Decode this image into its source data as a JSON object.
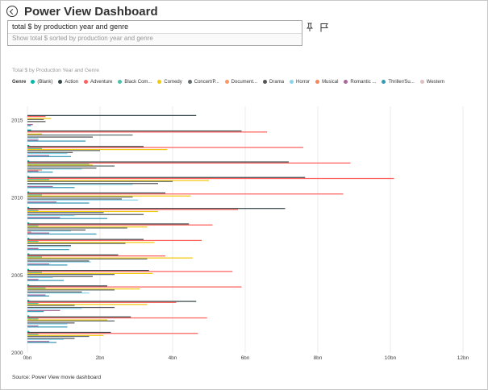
{
  "header": {
    "title": "Power View Dashboard"
  },
  "query": {
    "text": "total $ by production year and genre",
    "suggestion": "Show total $ sorted by production year and genre"
  },
  "legend_title": "Genre",
  "source": "Source: Power View movie dashboard",
  "chart_data": {
    "type": "bar",
    "orientation": "horizontal",
    "title": "Total $ by Production Year and Genre",
    "legend_position": "top-left",
    "grid": true,
    "xlim": [
      0,
      12
    ],
    "x_unit": "bn",
    "x_ticks": [
      "0bn",
      "2bn",
      "4bn",
      "6bn",
      "8bn",
      "10bn",
      "12bn"
    ],
    "y_tick_labels": [
      {
        "label": "2015",
        "year": 2015
      },
      {
        "label": "2010",
        "year": 2010
      },
      {
        "label": "2005",
        "year": 2005
      },
      {
        "label": "2000",
        "year": 2000
      }
    ],
    "series": [
      {
        "name": "(Blank)",
        "color": "#01B8AA"
      },
      {
        "name": "Action",
        "color": "#374649"
      },
      {
        "name": "Adventure",
        "color": "#FD625E"
      },
      {
        "name": "Black Com...",
        "color": "#4FC1A8"
      },
      {
        "name": "Comedy",
        "color": "#F2C80F"
      },
      {
        "name": "Concert/P...",
        "color": "#5F6B6D"
      },
      {
        "name": "Document...",
        "color": "#FE9666"
      },
      {
        "name": "Drama",
        "color": "#555555"
      },
      {
        "name": "Horror",
        "color": "#8AD4EB"
      },
      {
        "name": "Musical",
        "color": "#F4865C"
      },
      {
        "name": "Romantic ...",
        "color": "#A66999"
      },
      {
        "name": "Thriller/Su...",
        "color": "#3599B8"
      },
      {
        "name": "Western",
        "color": "#DFBFBF"
      }
    ],
    "years": [
      {
        "year": 2015,
        "values": [
          0,
          4.65,
          0.5,
          0,
          0.65,
          0.45,
          0,
          0.5,
          0,
          0,
          0.15,
          0.1,
          0
        ]
      },
      {
        "year": 2014,
        "values": [
          0.1,
          5.9,
          6.6,
          0,
          0.4,
          2.9,
          0,
          1.8,
          0.3,
          0,
          0.3,
          1.6,
          0
        ]
      },
      {
        "year": 2013,
        "values": [
          0.05,
          3.2,
          7.6,
          0.4,
          3.85,
          2.0,
          0,
          1.25,
          1.1,
          0,
          0.6,
          1.2,
          0
        ]
      },
      {
        "year": 2012,
        "values": [
          0.05,
          7.2,
          8.9,
          1.7,
          1.8,
          2.4,
          0,
          1.9,
          1.5,
          0.4,
          0.3,
          0.7,
          0
        ]
      },
      {
        "year": 2011,
        "values": [
          0.05,
          7.65,
          10.1,
          0.6,
          5.0,
          4.0,
          0,
          3.6,
          2.9,
          0,
          0.7,
          1.3,
          0
        ]
      },
      {
        "year": 2010,
        "values": [
          0.05,
          3.8,
          8.7,
          0.4,
          4.5,
          2.9,
          0,
          2.6,
          3.05,
          0,
          0.8,
          1.7,
          0
        ]
      },
      {
        "year": 2009,
        "values": [
          0.05,
          7.1,
          5.8,
          0.3,
          3.6,
          2.1,
          0,
          3.2,
          1.3,
          0,
          0.9,
          2.2,
          0
        ]
      },
      {
        "year": 2008,
        "values": [
          0.05,
          4.45,
          5.1,
          0.3,
          3.3,
          2.75,
          0,
          1.6,
          1.2,
          0.1,
          0.6,
          1.9,
          0
        ]
      },
      {
        "year": 2007,
        "values": [
          0.05,
          3.2,
          4.8,
          0.3,
          3.5,
          2.7,
          0,
          1.2,
          1.2,
          0,
          0.3,
          1.15,
          0
        ]
      },
      {
        "year": 2006,
        "values": [
          0.05,
          2.5,
          3.8,
          0.4,
          4.55,
          3.3,
          0,
          1.7,
          1.75,
          0,
          0.6,
          1.1,
          0
        ]
      },
      {
        "year": 2005,
        "values": [
          0.05,
          3.35,
          5.65,
          0.4,
          3.45,
          2.4,
          0,
          1.8,
          0.7,
          0,
          0.3,
          1.0,
          0
        ]
      },
      {
        "year": 2004,
        "values": [
          0.05,
          2.2,
          5.9,
          0.5,
          3.1,
          2.4,
          0,
          1.5,
          1.7,
          0,
          0.5,
          0.6,
          0
        ]
      },
      {
        "year": 2003,
        "values": [
          0.05,
          4.65,
          4.1,
          0.3,
          3.3,
          1.3,
          0,
          2.4,
          1.5,
          0,
          0.9,
          0.45,
          0
        ]
      },
      {
        "year": 2002,
        "values": [
          0.05,
          2.85,
          4.95,
          0.3,
          2.2,
          2.4,
          0,
          1.3,
          1.1,
          0,
          0.3,
          1.1,
          0
        ]
      },
      {
        "year": 2001,
        "values": [
          0.05,
          2.3,
          4.7,
          0.3,
          2.1,
          1.7,
          0,
          1.3,
          1.0,
          0,
          0.6,
          0.8,
          0
        ]
      }
    ]
  }
}
